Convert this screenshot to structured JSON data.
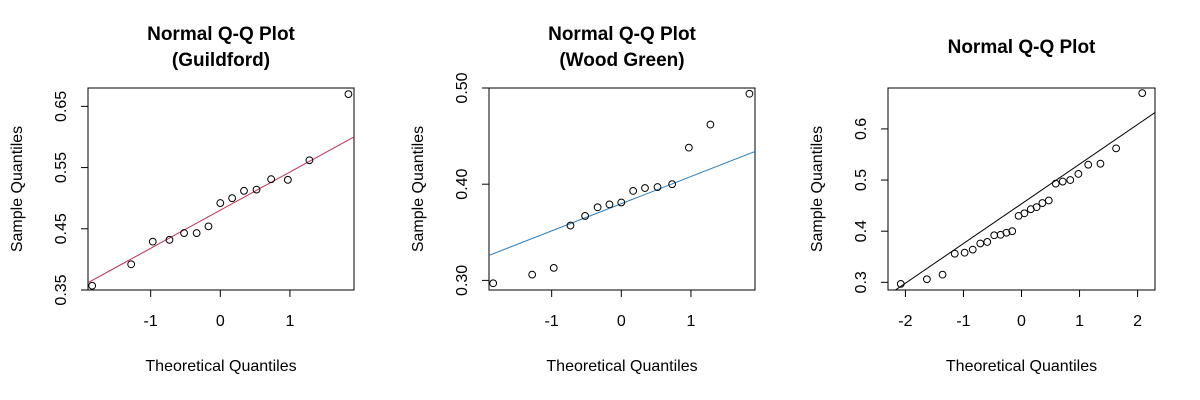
{
  "chart_data": [
    {
      "type": "scatter",
      "title": [
        "Normal Q-Q Plot",
        "(Guildford)"
      ],
      "xlabel": "Theoretical Quantiles",
      "ylabel": "Sample Quantiles",
      "xlim": [
        -1.9,
        1.92
      ],
      "ylim": [
        0.35,
        0.68
      ],
      "xticks": [
        -1,
        0,
        1
      ],
      "xtick_labels": [
        "-1",
        "0",
        "1"
      ],
      "yticks": [
        0.35,
        0.45,
        0.55,
        0.65
      ],
      "ytick_labels": [
        "0.35",
        "0.45",
        "0.55",
        "0.65"
      ],
      "points": {
        "x": [
          -1.84,
          -1.28,
          -0.97,
          -0.73,
          -0.52,
          -0.34,
          -0.17,
          0.0,
          0.17,
          0.34,
          0.52,
          0.73,
          0.97,
          1.28,
          1.84
        ],
        "y": [
          0.357,
          0.392,
          0.429,
          0.432,
          0.443,
          0.443,
          0.454,
          0.492,
          0.5,
          0.512,
          0.514,
          0.531,
          0.53,
          0.562,
          0.67
        ]
      },
      "line": {
        "x": [
          -1.9,
          1.92
        ],
        "y": [
          0.362,
          0.6
        ],
        "color": "#c03050"
      },
      "grid": false,
      "legend": "none"
    },
    {
      "type": "scatter",
      "title": [
        "Normal Q-Q Plot",
        "(Wood Green)"
      ],
      "xlabel": "Theoretical Quantiles",
      "ylabel": "Sample Quantiles",
      "xlim": [
        -1.9,
        1.92
      ],
      "ylim": [
        0.29,
        0.5
      ],
      "xticks": [
        -1,
        0,
        1
      ],
      "xtick_labels": [
        "-1",
        "0",
        "1"
      ],
      "yticks": [
        0.3,
        0.4,
        0.5
      ],
      "ytick_labels": [
        "0.30",
        "0.40",
        "0.50"
      ],
      "points": {
        "x": [
          -1.84,
          -1.28,
          -0.97,
          -0.73,
          -0.52,
          -0.34,
          -0.17,
          0.0,
          0.17,
          0.34,
          0.52,
          0.73,
          0.97,
          1.28,
          1.84
        ],
        "y": [
          0.297,
          0.306,
          0.313,
          0.357,
          0.367,
          0.376,
          0.379,
          0.381,
          0.393,
          0.396,
          0.397,
          0.4,
          0.438,
          0.462,
          0.494
        ]
      },
      "line": {
        "x": [
          -1.9,
          1.92
        ],
        "y": [
          0.326,
          0.434
        ],
        "color": "#2a7fc0"
      },
      "grid": false,
      "legend": "none"
    },
    {
      "type": "scatter",
      "title": [
        "Normal Q-Q Plot"
      ],
      "xlabel": "Theoretical Quantiles",
      "ylabel": "Sample Quantiles",
      "xlim": [
        -2.3,
        2.3
      ],
      "ylim": [
        0.285,
        0.68
      ],
      "xticks": [
        -2,
        -1,
        0,
        1,
        2
      ],
      "xtick_labels": [
        "-2",
        "-1",
        "0",
        "1",
        "2"
      ],
      "yticks": [
        0.3,
        0.4,
        0.5,
        0.6
      ],
      "ytick_labels": [
        "0.3",
        "0.4",
        "0.5",
        "0.6"
      ],
      "points": {
        "x": [
          -2.08,
          -1.63,
          -1.36,
          -1.15,
          -0.98,
          -0.84,
          -0.71,
          -0.59,
          -0.47,
          -0.36,
          -0.26,
          -0.16,
          -0.05,
          0.05,
          0.16,
          0.26,
          0.36,
          0.47,
          0.59,
          0.71,
          0.84,
          0.98,
          1.15,
          1.36,
          1.63,
          2.08
        ],
        "y": [
          0.297,
          0.306,
          0.315,
          0.356,
          0.358,
          0.364,
          0.376,
          0.379,
          0.392,
          0.393,
          0.397,
          0.4,
          0.43,
          0.435,
          0.443,
          0.447,
          0.455,
          0.46,
          0.493,
          0.497,
          0.5,
          0.512,
          0.53,
          0.532,
          0.562,
          0.67
        ]
      },
      "line": {
        "x": [
          -2.3,
          2.3
        ],
        "y": [
          0.275,
          0.632
        ],
        "color": "#000000"
      },
      "grid": false,
      "legend": "none"
    }
  ]
}
